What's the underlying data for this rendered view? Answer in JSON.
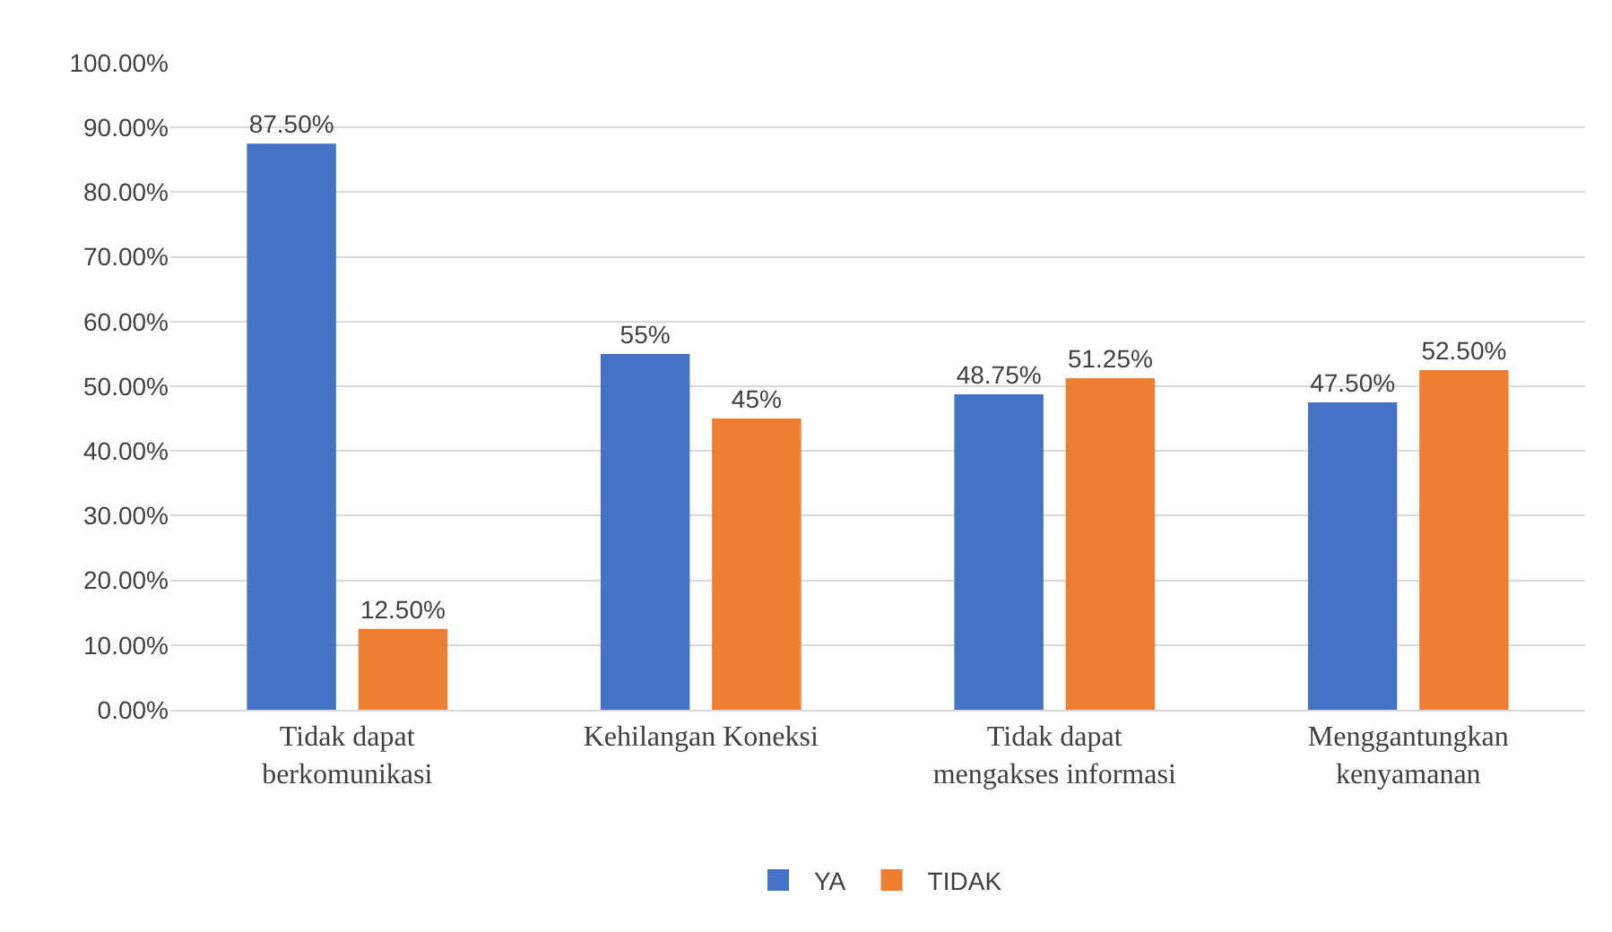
{
  "chart_data": {
    "type": "bar",
    "categories": [
      "Tidak dapat\nberkomunikasi",
      "Kehilangan Koneksi",
      "Tidak dapat\nmengakses informasi",
      "Menggantungkan\nkenyamanan"
    ],
    "series": [
      {
        "name": "YA",
        "color": "#4472c4",
        "values": [
          87.5,
          55,
          48.75,
          47.5
        ],
        "value_labels": [
          "87.50%",
          "55%",
          "48.75%",
          "47.50%"
        ]
      },
      {
        "name": "TIDAK",
        "color": "#ed7d31",
        "values": [
          12.5,
          45,
          51.25,
          52.5
        ],
        "value_labels": [
          "12.50%",
          "45%",
          "51.25%",
          "52.50%"
        ]
      }
    ],
    "ylim": [
      0,
      100
    ],
    "yticks": [
      {
        "value": 0,
        "label": "0.00%"
      },
      {
        "value": 10,
        "label": "10.00%"
      },
      {
        "value": 20,
        "label": "20.00%"
      },
      {
        "value": 30,
        "label": "30.00%"
      },
      {
        "value": 40,
        "label": "40.00%"
      },
      {
        "value": 50,
        "label": "50.00%"
      },
      {
        "value": 60,
        "label": "60.00%"
      },
      {
        "value": 70,
        "label": "70.00%"
      },
      {
        "value": 80,
        "label": "80.00%"
      },
      {
        "value": 90,
        "label": "90.00%"
      },
      {
        "value": 100,
        "label": "100.00%"
      }
    ],
    "grid": "y",
    "legend": "bottom"
  }
}
